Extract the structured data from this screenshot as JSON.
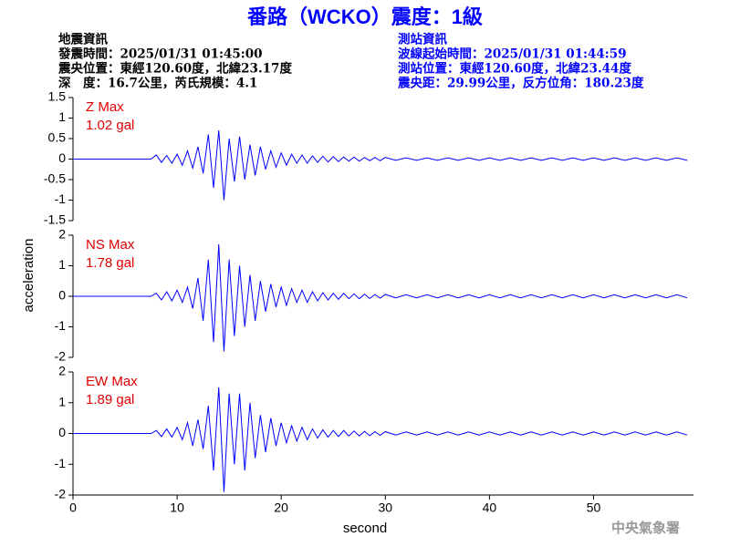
{
  "header": {
    "title": "番路（WCKO）震度：1級",
    "left": [
      "地震資訊",
      "發震時間：2025/01/31 01:45:00",
      "震央位置：東經120.60度，北緯23.17度",
      "深　度：16.7公里，芮氏規模：4.1"
    ],
    "right": [
      "測站資訊",
      "波線起始時間：2025/01/31 01:44:59",
      "測站位置：東經120.60度，北緯23.44度",
      "震央距：29.99公里，反方位角：180.23度"
    ],
    "ylabel": "acceleration",
    "xlabel": "second",
    "credit": "中央氣象署"
  },
  "chart_data": [
    {
      "type": "line",
      "label": "Z Max",
      "max_label": "1.02 gal",
      "color": "#0000ff",
      "xlim": [
        0,
        59.6
      ],
      "ylim": [
        -1.5,
        1.5
      ],
      "yticks": [
        -1.5,
        -1,
        -0.5,
        0,
        0.5,
        1,
        1.5
      ],
      "x": [
        0,
        7.5,
        8,
        8.5,
        9,
        9.5,
        10,
        10.5,
        11,
        11.5,
        12,
        12.5,
        13,
        13.5,
        14,
        14.5,
        15,
        15.5,
        16,
        16.5,
        17,
        17.5,
        18,
        18.5,
        19,
        19.5,
        20,
        20.5,
        21,
        21.5,
        22,
        22.5,
        23,
        23.5,
        24,
        24.5,
        25,
        25.5,
        26,
        26.5,
        27,
        27.5,
        28,
        28.5,
        29,
        29.5,
        30,
        31,
        32,
        33,
        34,
        35,
        36,
        37,
        38,
        39,
        40,
        41,
        42,
        43,
        44,
        45,
        46,
        47,
        48,
        49,
        50,
        51,
        52,
        53,
        54,
        55,
        56,
        57,
        58,
        59
      ],
      "values": [
        0,
        0,
        0.1,
        -0.08,
        0.09,
        -0.1,
        0.12,
        -0.15,
        0.2,
        -0.22,
        0.3,
        -0.35,
        0.6,
        -0.7,
        0.7,
        -1.0,
        0.5,
        -0.55,
        0.55,
        -0.5,
        0.35,
        -0.4,
        0.3,
        -0.25,
        0.2,
        -0.2,
        0.15,
        -0.15,
        0.12,
        -0.1,
        0.1,
        -0.1,
        0.08,
        -0.08,
        0.07,
        -0.07,
        0.06,
        -0.06,
        0.05,
        -0.05,
        0.05,
        -0.05,
        0.04,
        -0.04,
        0.04,
        -0.04,
        0.04,
        -0.03,
        0.03,
        -0.03,
        0.03,
        -0.03,
        0.03,
        -0.03,
        0.03,
        -0.03,
        0.03,
        -0.03,
        0.03,
        -0.03,
        0.03,
        -0.03,
        0.03,
        -0.03,
        0.03,
        -0.03,
        0.03,
        -0.03,
        0.03,
        -0.03,
        0.03,
        -0.03,
        0.03,
        -0.03,
        0.03,
        -0.03
      ]
    },
    {
      "type": "line",
      "label": "NS Max",
      "max_label": "1.78 gal",
      "color": "#0000ff",
      "xlim": [
        0,
        59.6
      ],
      "ylim": [
        -2,
        2
      ],
      "yticks": [
        -2,
        -1,
        0,
        1,
        2
      ],
      "x": [
        0,
        7.5,
        8,
        8.5,
        9,
        9.5,
        10,
        10.5,
        11,
        11.5,
        12,
        12.5,
        13,
        13.5,
        14,
        14.5,
        15,
        15.5,
        16,
        16.5,
        17,
        17.5,
        18,
        18.5,
        19,
        19.5,
        20,
        20.5,
        21,
        21.5,
        22,
        22.5,
        23,
        23.5,
        24,
        24.5,
        25,
        25.5,
        26,
        26.5,
        27,
        27.5,
        28,
        28.5,
        29,
        29.5,
        30,
        31,
        32,
        33,
        34,
        35,
        36,
        37,
        38,
        39,
        40,
        41,
        42,
        43,
        44,
        45,
        46,
        47,
        48,
        49,
        50,
        51,
        52,
        53,
        54,
        55,
        56,
        57,
        58,
        59
      ],
      "values": [
        0,
        0,
        0.1,
        -0.12,
        0.15,
        -0.15,
        0.2,
        -0.2,
        0.3,
        -0.4,
        0.6,
        -0.8,
        1.2,
        -1.5,
        1.7,
        -1.8,
        1.2,
        -1.3,
        1.0,
        -1.0,
        0.7,
        -0.8,
        0.5,
        -0.5,
        0.4,
        -0.35,
        0.3,
        -0.3,
        0.25,
        -0.2,
        0.2,
        -0.2,
        0.15,
        -0.15,
        0.12,
        -0.12,
        0.1,
        -0.1,
        0.1,
        -0.08,
        0.08,
        -0.08,
        0.07,
        -0.07,
        0.06,
        -0.06,
        0.06,
        -0.05,
        0.05,
        -0.05,
        0.05,
        -0.05,
        0.05,
        -0.05,
        0.05,
        -0.05,
        0.05,
        -0.05,
        0.05,
        -0.05,
        0.05,
        -0.05,
        0.05,
        -0.05,
        0.05,
        -0.05,
        0.05,
        -0.05,
        0.05,
        -0.05,
        0.05,
        -0.05,
        0.05,
        -0.05,
        0.05,
        -0.05
      ]
    },
    {
      "type": "line",
      "label": "EW Max",
      "max_label": "1.89 gal",
      "color": "#0000ff",
      "xlim": [
        0,
        59.6
      ],
      "ylim": [
        -2,
        2
      ],
      "yticks": [
        -2,
        -1,
        0,
        1,
        2
      ],
      "xticks": [
        0,
        10,
        20,
        30,
        40,
        50
      ],
      "x": [
        0,
        7.5,
        8,
        8.5,
        9,
        9.5,
        10,
        10.5,
        11,
        11.5,
        12,
        12.5,
        13,
        13.5,
        14,
        14.5,
        15,
        15.5,
        16,
        16.5,
        17,
        17.5,
        18,
        18.5,
        19,
        19.5,
        20,
        20.5,
        21,
        21.5,
        22,
        22.5,
        23,
        23.5,
        24,
        24.5,
        25,
        25.5,
        26,
        26.5,
        27,
        27.5,
        28,
        28.5,
        29,
        29.5,
        30,
        31,
        32,
        33,
        34,
        35,
        36,
        37,
        38,
        39,
        40,
        41,
        42,
        43,
        44,
        45,
        46,
        47,
        48,
        49,
        50,
        51,
        52,
        53,
        54,
        55,
        56,
        57,
        58,
        59
      ],
      "values": [
        0,
        0,
        0.1,
        -0.1,
        0.15,
        -0.12,
        0.2,
        -0.2,
        0.35,
        -0.4,
        0.45,
        -0.5,
        0.9,
        -1.2,
        1.5,
        -1.9,
        1.3,
        -1.0,
        1.3,
        -1.2,
        1.0,
        -0.8,
        0.6,
        -0.6,
        0.5,
        -0.4,
        0.35,
        -0.3,
        0.25,
        -0.25,
        0.2,
        -0.2,
        0.15,
        -0.15,
        0.12,
        -0.12,
        0.1,
        -0.1,
        0.1,
        -0.08,
        0.08,
        -0.08,
        0.07,
        -0.07,
        0.06,
        -0.06,
        0.06,
        -0.05,
        0.05,
        -0.05,
        0.05,
        -0.05,
        0.05,
        -0.05,
        0.05,
        -0.05,
        0.05,
        -0.05,
        0.05,
        -0.05,
        0.05,
        -0.05,
        0.05,
        -0.05,
        0.05,
        -0.05,
        0.05,
        -0.05,
        0.05,
        -0.05,
        0.05,
        -0.05,
        0.05,
        -0.05,
        0.05,
        -0.05
      ]
    }
  ]
}
